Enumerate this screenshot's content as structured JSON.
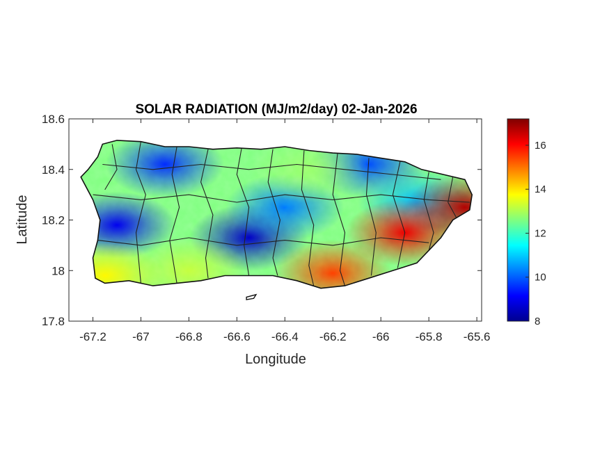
{
  "chart_data": {
    "type": "heatmap",
    "title": "SOLAR RADIATION (MJ/m2/day) 02-Jan-2026",
    "xlabel": "Longitude",
    "ylabel": "Latitude",
    "xlim": [
      -67.3,
      -65.58
    ],
    "ylim": [
      17.8,
      18.6
    ],
    "xticks": [
      -67.2,
      -67,
      -66.8,
      -66.6,
      -66.4,
      -66.2,
      -66,
      -65.8,
      -65.6
    ],
    "xtick_labels": [
      "-67.2",
      "-67",
      "-66.8",
      "-66.6",
      "-66.4",
      "-66.2",
      "-66",
      "-65.8",
      "-65.6"
    ],
    "yticks": [
      17.8,
      18,
      18.2,
      18.4,
      18.6
    ],
    "ytick_labels": [
      "17.8",
      "18",
      "18.2",
      "18.4",
      "18.6"
    ],
    "colorbar": {
      "colormap": "jet",
      "range": [
        8,
        17.2
      ],
      "ticks": [
        8,
        10,
        12,
        14,
        16
      ],
      "tick_labels": [
        "8",
        "10",
        "12",
        "14",
        "16"
      ]
    },
    "grid": false,
    "regions": [
      {
        "lon": -67.1,
        "lat": 18.18,
        "value": 9.0
      },
      {
        "lon": -66.9,
        "lat": 18.42,
        "value": 9.5
      },
      {
        "lon": -66.55,
        "lat": 18.13,
        "value": 8.6
      },
      {
        "lon": -66.4,
        "lat": 18.25,
        "value": 10.2
      },
      {
        "lon": -66.05,
        "lat": 18.42,
        "value": 9.8
      },
      {
        "lon": -65.85,
        "lat": 18.27,
        "value": 10.8
      },
      {
        "lon": -66.2,
        "lat": 17.99,
        "value": 15.5
      },
      {
        "lon": -65.9,
        "lat": 18.15,
        "value": 16.2
      },
      {
        "lon": -65.65,
        "lat": 18.25,
        "value": 16.8
      },
      {
        "lon": -67.15,
        "lat": 17.98,
        "value": 13.8
      },
      {
        "lon": -66.8,
        "lat": 18.0,
        "value": 13.2
      },
      {
        "lon": -66.3,
        "lat": 18.4,
        "value": 12.8
      }
    ]
  }
}
